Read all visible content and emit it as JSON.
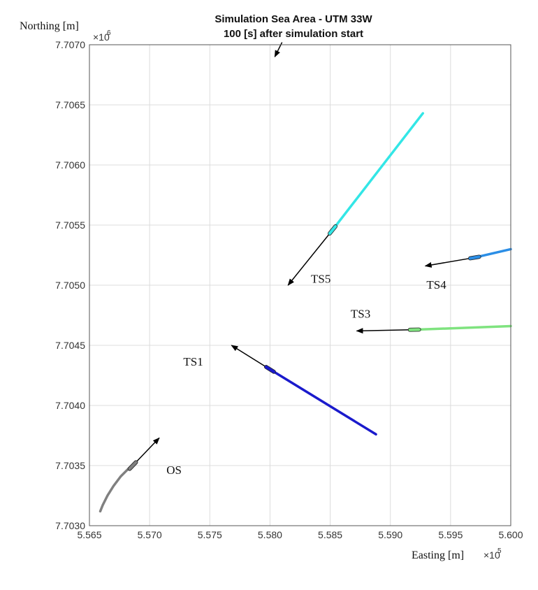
{
  "chart_data": {
    "type": "line",
    "title": [
      "Simulation Sea Area - UTM 33W",
      "100 [s] after simulation start"
    ],
    "xlabel": "Easting [m]",
    "ylabel": "Northing [m]",
    "x_exponent_base": "×10",
    "x_exponent": "5",
    "y_exponent_base": "×10",
    "y_exponent": "6",
    "xlim": [
      556500,
      560000
    ],
    "ylim": [
      7703000,
      7707000
    ],
    "x_ticks": [
      556500,
      557000,
      557500,
      558000,
      558500,
      559000,
      559500,
      560000
    ],
    "x_tick_labels": [
      "5.565",
      "5.570",
      "5.575",
      "5.580",
      "5.585",
      "5.590",
      "5.595",
      "5.600"
    ],
    "y_ticks": [
      7703000,
      7703500,
      7704000,
      7704500,
      7705000,
      7705500,
      7706000,
      7706500,
      7707000
    ],
    "y_tick_labels": [
      "7.7030",
      "7.7035",
      "7.7040",
      "7.7045",
      "7.7050",
      "7.7055",
      "7.7060",
      "7.7065",
      "7.7070"
    ],
    "grid": true,
    "series": [
      {
        "name": "OS",
        "color": "#808080",
        "track": [
          [
            556590,
            7703120
          ],
          [
            556610,
            7703170
          ],
          [
            556650,
            7703250
          ],
          [
            556700,
            7703330
          ],
          [
            556760,
            7703410
          ],
          [
            556830,
            7703480
          ],
          [
            556860,
            7703500
          ]
        ],
        "ship": [
          556860,
          7703500
        ],
        "arrow_tip": [
          557080,
          7703730
        ]
      },
      {
        "name": "TS1",
        "color": "#1a1acc",
        "track": [
          [
            558880,
            7703760
          ],
          [
            558000,
            7704300
          ]
        ],
        "ship": [
          558000,
          7704300
        ],
        "arrow_tip": [
          557680,
          7704500
        ]
      },
      {
        "name": "TS3",
        "color": "#7fe37f",
        "track": [
          [
            560000,
            7704660
          ],
          [
            559200,
            7704630
          ]
        ],
        "ship": [
          559200,
          7704630
        ],
        "arrow_tip": [
          558720,
          7704620
        ]
      },
      {
        "name": "TS4",
        "color": "#2b8ee6",
        "track": [
          [
            560000,
            7705300
          ],
          [
            559700,
            7705230
          ]
        ],
        "ship": [
          559700,
          7705230
        ],
        "arrow_tip": [
          559290,
          7705160
        ]
      },
      {
        "name": "TS5",
        "color": "#33e6e6",
        "track": [
          [
            559270,
            7706430
          ],
          [
            558520,
            7705460
          ]
        ],
        "ship": [
          558520,
          7705460
        ],
        "arrow_tip": [
          558150,
          7705000
        ]
      }
    ],
    "extra_arrow": {
      "from": [
        558100,
        7707020
      ],
      "to": [
        558040,
        7706900
      ]
    },
    "annotations": [
      {
        "text": "OS",
        "x": 557140,
        "y": 7703430
      },
      {
        "text": "TS1",
        "x": 557280,
        "y": 7704330
      },
      {
        "text": "TS3",
        "x": 558670,
        "y": 7704730
      },
      {
        "text": "TS4",
        "x": 559300,
        "y": 7704970
      },
      {
        "text": "TS5",
        "x": 558340,
        "y": 7705020
      }
    ]
  }
}
